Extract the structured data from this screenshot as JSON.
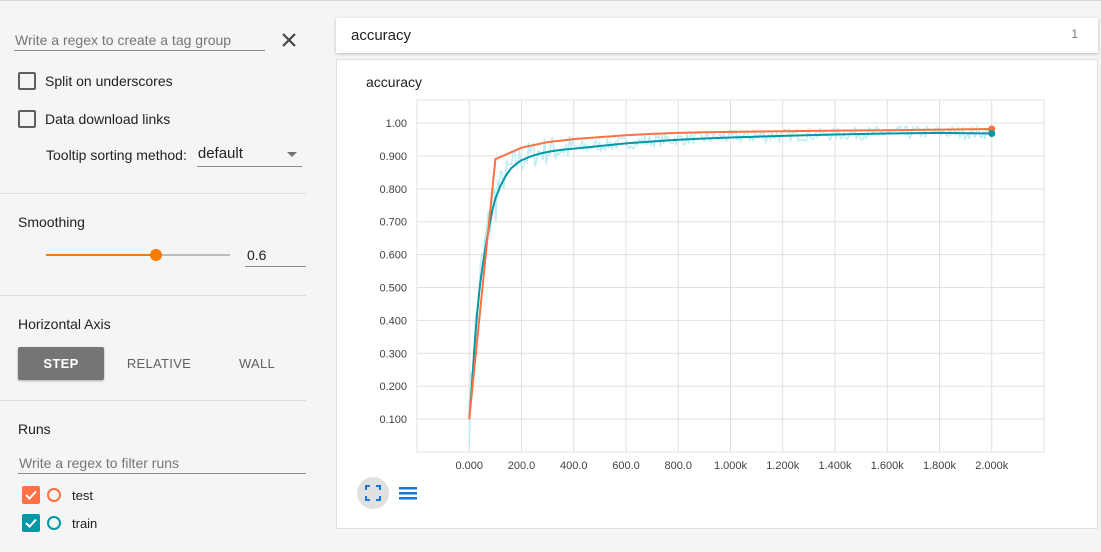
{
  "sidebar": {
    "tag_filter_placeholder": "Write a regex to create a tag group",
    "split_label": "Split on underscores",
    "download_label": "Data download links",
    "tooltip_label": "Tooltip sorting method:",
    "tooltip_value": "default",
    "smoothing_title": "Smoothing",
    "smoothing_value": "0.6",
    "smoothing_fraction": 0.6,
    "axis_title": "Horizontal Axis",
    "axis_buttons": [
      "STEP",
      "RELATIVE",
      "WALL"
    ],
    "axis_selected": "STEP",
    "runs_title": "Runs",
    "runs_filter_placeholder": "Write a regex to filter runs",
    "runs": [
      {
        "name": "test",
        "color": "#ff7043",
        "checked": true
      },
      {
        "name": "train",
        "color": "#0097a7",
        "checked": true
      }
    ]
  },
  "card": {
    "title": "accuracy",
    "count": "1"
  },
  "colors": {
    "accent": "#f57c00",
    "test": "#ff7043",
    "train_smoothed": "#0097a7",
    "train_raw": "#b2ebf2",
    "icon_blue": "#1976d2"
  },
  "chart_data": {
    "type": "line",
    "title": "accuracy",
    "xlim": [
      -200,
      2200
    ],
    "ylim": [
      0,
      1.07
    ],
    "x_ticks": [
      0,
      200,
      400,
      600,
      800,
      1000,
      1200,
      1400,
      1600,
      1800,
      2000
    ],
    "x_tick_labels": [
      "0.000",
      "200.0",
      "400.0",
      "600.0",
      "800.0",
      "1.000k",
      "1.200k",
      "1.400k",
      "1.600k",
      "1.800k",
      "2.000k"
    ],
    "y_ticks": [
      0.1,
      0.2,
      0.3,
      0.4,
      0.5,
      0.6,
      0.7,
      0.8,
      0.9,
      1.0
    ],
    "y_tick_labels": [
      "0.100",
      "0.200",
      "0.300",
      "0.400",
      "0.500",
      "0.600",
      "0.700",
      "0.800",
      "0.900",
      "1.00"
    ],
    "grid": true,
    "series": [
      {
        "name": "test",
        "x": [
          0,
          100,
          200,
          300,
          400,
          500,
          600,
          700,
          800,
          900,
          1000,
          1200,
          1400,
          1600,
          1800,
          2000
        ],
        "values": [
          0.1,
          0.89,
          0.925,
          0.942,
          0.951,
          0.957,
          0.963,
          0.967,
          0.97,
          0.972,
          0.973,
          0.975,
          0.977,
          0.978,
          0.98,
          0.982
        ]
      },
      {
        "name": "train",
        "x": [
          0,
          10,
          20,
          30,
          40,
          50,
          60,
          70,
          80,
          90,
          100,
          120,
          140,
          160,
          180,
          200,
          240,
          280,
          320,
          360,
          400,
          450,
          500,
          600,
          700,
          800,
          900,
          1000,
          1200,
          1400,
          1600,
          1800,
          2000
        ],
        "values": [
          0.1,
          0.2,
          0.32,
          0.42,
          0.5,
          0.56,
          0.61,
          0.66,
          0.7,
          0.74,
          0.77,
          0.81,
          0.84,
          0.862,
          0.876,
          0.887,
          0.9,
          0.909,
          0.915,
          0.919,
          0.922,
          0.926,
          0.93,
          0.938,
          0.944,
          0.949,
          0.953,
          0.956,
          0.961,
          0.965,
          0.968,
          0.97,
          0.968
        ]
      }
    ]
  }
}
